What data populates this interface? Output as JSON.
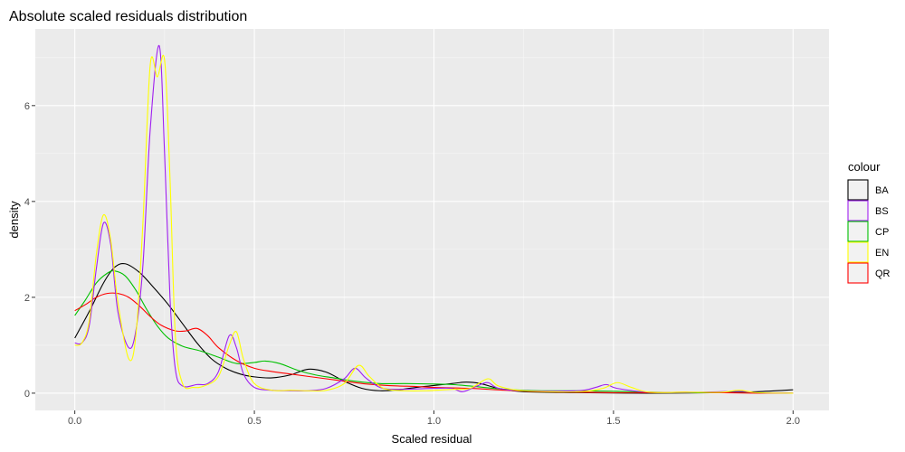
{
  "chart_data": {
    "type": "line",
    "title": "Absolute scaled residuals distribution",
    "xlabel": "Scaled residual",
    "ylabel": "density",
    "xlim": [
      -0.11,
      2.1
    ],
    "ylim": [
      -0.36,
      7.6
    ],
    "x_ticks": [
      {
        "value": 0,
        "label": "0.0"
      },
      {
        "value": 0.5,
        "label": "0.5"
      },
      {
        "value": 1,
        "label": "1.0"
      },
      {
        "value": 1.5,
        "label": "1.5"
      },
      {
        "value": 2,
        "label": "2.0"
      }
    ],
    "y_ticks": [
      {
        "value": 0,
        "label": "0"
      },
      {
        "value": 2,
        "label": "2"
      },
      {
        "value": 4,
        "label": "4"
      },
      {
        "value": 6,
        "label": "6"
      }
    ],
    "grid": true,
    "legend": {
      "title": "colour",
      "position": "right"
    },
    "series": [
      {
        "name": "BA",
        "color": "#000000",
        "points": [
          [
            0,
            1.15
          ],
          [
            0.04,
            1.7
          ],
          [
            0.08,
            2.3
          ],
          [
            0.11,
            2.62
          ],
          [
            0.14,
            2.7
          ],
          [
            0.18,
            2.52
          ],
          [
            0.22,
            2.2
          ],
          [
            0.26,
            1.85
          ],
          [
            0.3,
            1.45
          ],
          [
            0.34,
            1.05
          ],
          [
            0.38,
            0.72
          ],
          [
            0.42,
            0.52
          ],
          [
            0.46,
            0.4
          ],
          [
            0.5,
            0.34
          ],
          [
            0.55,
            0.32
          ],
          [
            0.6,
            0.38
          ],
          [
            0.65,
            0.5
          ],
          [
            0.7,
            0.44
          ],
          [
            0.75,
            0.25
          ],
          [
            0.8,
            0.1
          ],
          [
            0.85,
            0.05
          ],
          [
            0.9,
            0.07
          ],
          [
            0.95,
            0.12
          ],
          [
            1.0,
            0.16
          ],
          [
            1.05,
            0.2
          ],
          [
            1.09,
            0.23
          ],
          [
            1.13,
            0.2
          ],
          [
            1.18,
            0.1
          ],
          [
            1.25,
            0.03
          ],
          [
            1.4,
            0.01
          ],
          [
            1.6,
            0.0
          ],
          [
            1.8,
            0.01
          ],
          [
            1.9,
            0.03
          ],
          [
            2.0,
            0.07
          ]
        ]
      },
      {
        "name": "BS",
        "color": "#a020f0",
        "points": [
          [
            0,
            1.05
          ],
          [
            0.02,
            1.05
          ],
          [
            0.04,
            1.4
          ],
          [
            0.06,
            2.6
          ],
          [
            0.08,
            3.55
          ],
          [
            0.1,
            3.1
          ],
          [
            0.12,
            1.7
          ],
          [
            0.15,
            0.95
          ],
          [
            0.17,
            1.3
          ],
          [
            0.19,
            2.7
          ],
          [
            0.21,
            5.5
          ],
          [
            0.235,
            7.25
          ],
          [
            0.25,
            5.0
          ],
          [
            0.265,
            2.0
          ],
          [
            0.28,
            0.5
          ],
          [
            0.3,
            0.15
          ],
          [
            0.34,
            0.18
          ],
          [
            0.37,
            0.2
          ],
          [
            0.4,
            0.45
          ],
          [
            0.43,
            1.2
          ],
          [
            0.45,
            0.95
          ],
          [
            0.47,
            0.4
          ],
          [
            0.5,
            0.12
          ],
          [
            0.55,
            0.06
          ],
          [
            0.6,
            0.05
          ],
          [
            0.65,
            0.05
          ],
          [
            0.7,
            0.1
          ],
          [
            0.75,
            0.3
          ],
          [
            0.78,
            0.52
          ],
          [
            0.81,
            0.32
          ],
          [
            0.85,
            0.12
          ],
          [
            0.9,
            0.08
          ],
          [
            1.0,
            0.1
          ],
          [
            1.05,
            0.1
          ],
          [
            1.08,
            0.03
          ],
          [
            1.12,
            0.15
          ],
          [
            1.15,
            0.22
          ],
          [
            1.18,
            0.1
          ],
          [
            1.25,
            0.05
          ],
          [
            1.4,
            0.05
          ],
          [
            1.45,
            0.12
          ],
          [
            1.48,
            0.18
          ],
          [
            1.51,
            0.1
          ],
          [
            1.6,
            0.02
          ],
          [
            1.75,
            0.02
          ],
          [
            1.85,
            0.04
          ],
          [
            1.9,
            0.01
          ],
          [
            2.0,
            0.0
          ]
        ]
      },
      {
        "name": "CP",
        "color": "#00c000",
        "points": [
          [
            0,
            1.62
          ],
          [
            0.03,
            1.95
          ],
          [
            0.06,
            2.3
          ],
          [
            0.09,
            2.5
          ],
          [
            0.11,
            2.55
          ],
          [
            0.14,
            2.45
          ],
          [
            0.17,
            2.15
          ],
          [
            0.2,
            1.75
          ],
          [
            0.23,
            1.4
          ],
          [
            0.26,
            1.15
          ],
          [
            0.3,
            0.98
          ],
          [
            0.35,
            0.88
          ],
          [
            0.4,
            0.75
          ],
          [
            0.45,
            0.62
          ],
          [
            0.5,
            0.64
          ],
          [
            0.53,
            0.67
          ],
          [
            0.57,
            0.62
          ],
          [
            0.62,
            0.48
          ],
          [
            0.67,
            0.38
          ],
          [
            0.72,
            0.32
          ],
          [
            0.78,
            0.25
          ],
          [
            0.85,
            0.2
          ],
          [
            0.92,
            0.2
          ],
          [
            1.0,
            0.19
          ],
          [
            1.05,
            0.18
          ],
          [
            1.1,
            0.15
          ],
          [
            1.2,
            0.08
          ],
          [
            1.3,
            0.05
          ],
          [
            1.4,
            0.05
          ],
          [
            1.5,
            0.04
          ],
          [
            1.6,
            0.02
          ],
          [
            1.7,
            0.01
          ],
          [
            1.8,
            0.01
          ],
          [
            1.9,
            0.01
          ]
        ]
      },
      {
        "name": "EN",
        "color": "#ffff00",
        "points": [
          [
            0,
            1.0
          ],
          [
            0.02,
            1.05
          ],
          [
            0.04,
            1.5
          ],
          [
            0.06,
            2.9
          ],
          [
            0.08,
            3.72
          ],
          [
            0.1,
            3.2
          ],
          [
            0.12,
            1.9
          ],
          [
            0.15,
            0.72
          ],
          [
            0.17,
            1.2
          ],
          [
            0.19,
            3.6
          ],
          [
            0.21,
            6.85
          ],
          [
            0.23,
            6.6
          ],
          [
            0.25,
            6.95
          ],
          [
            0.265,
            4.5
          ],
          [
            0.28,
            1.2
          ],
          [
            0.3,
            0.2
          ],
          [
            0.33,
            0.12
          ],
          [
            0.36,
            0.15
          ],
          [
            0.4,
            0.35
          ],
          [
            0.43,
            1.0
          ],
          [
            0.45,
            1.28
          ],
          [
            0.47,
            0.7
          ],
          [
            0.5,
            0.2
          ],
          [
            0.55,
            0.06
          ],
          [
            0.6,
            0.06
          ],
          [
            0.65,
            0.05
          ],
          [
            0.7,
            0.06
          ],
          [
            0.75,
            0.2
          ],
          [
            0.79,
            0.58
          ],
          [
            0.82,
            0.35
          ],
          [
            0.86,
            0.1
          ],
          [
            0.92,
            0.05
          ],
          [
            0.98,
            0.05
          ],
          [
            1.05,
            0.08
          ],
          [
            1.1,
            0.1
          ],
          [
            1.15,
            0.3
          ],
          [
            1.18,
            0.15
          ],
          [
            1.25,
            0.05
          ],
          [
            1.4,
            0.03
          ],
          [
            1.47,
            0.1
          ],
          [
            1.51,
            0.22
          ],
          [
            1.55,
            0.12
          ],
          [
            1.6,
            0.02
          ],
          [
            1.7,
            0.02
          ],
          [
            1.8,
            0.02
          ],
          [
            1.85,
            0.06
          ],
          [
            1.9,
            0.01
          ],
          [
            2.0,
            0.0
          ]
        ]
      },
      {
        "name": "QR",
        "color": "#ff0000",
        "points": [
          [
            0,
            1.72
          ],
          [
            0.03,
            1.85
          ],
          [
            0.06,
            2.0
          ],
          [
            0.09,
            2.08
          ],
          [
            0.12,
            2.08
          ],
          [
            0.15,
            2.0
          ],
          [
            0.18,
            1.82
          ],
          [
            0.21,
            1.6
          ],
          [
            0.24,
            1.42
          ],
          [
            0.28,
            1.3
          ],
          [
            0.31,
            1.3
          ],
          [
            0.34,
            1.35
          ],
          [
            0.37,
            1.2
          ],
          [
            0.4,
            0.95
          ],
          [
            0.45,
            0.68
          ],
          [
            0.5,
            0.52
          ],
          [
            0.55,
            0.45
          ],
          [
            0.6,
            0.4
          ],
          [
            0.65,
            0.35
          ],
          [
            0.7,
            0.3
          ],
          [
            0.75,
            0.25
          ],
          [
            0.8,
            0.2
          ],
          [
            0.85,
            0.17
          ],
          [
            0.9,
            0.15
          ],
          [
            0.95,
            0.14
          ],
          [
            1.0,
            0.12
          ],
          [
            1.1,
            0.1
          ],
          [
            1.2,
            0.06
          ],
          [
            1.3,
            0.03
          ],
          [
            1.4,
            0.02
          ],
          [
            1.5,
            0.01
          ],
          [
            1.6,
            0.01
          ],
          [
            1.7,
            0.02
          ],
          [
            1.8,
            0.01
          ],
          [
            1.9,
            0.0
          ],
          [
            2.0,
            0.0
          ]
        ]
      }
    ]
  }
}
